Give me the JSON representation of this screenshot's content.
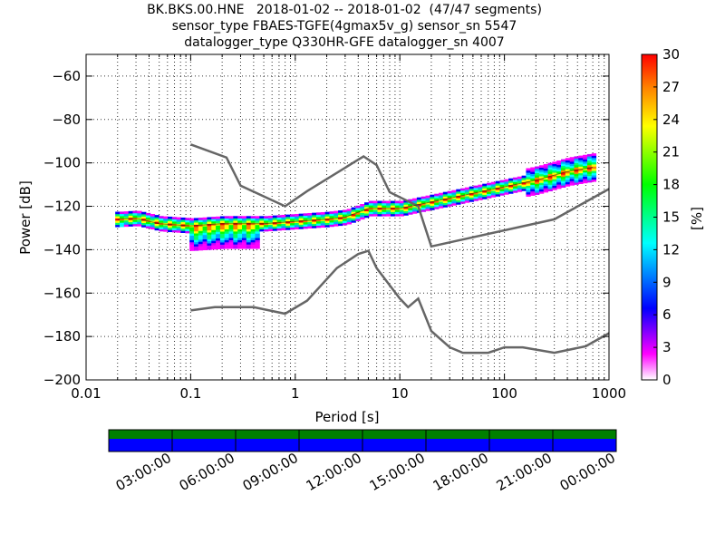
{
  "title_lines": [
    "BK.BKS.00.HNE   2018-01-02 -- 2018-01-02  (47/47 segments)",
    "sensor_type FBAES-TGFE(4gmax5v_g) sensor_sn 5547",
    "datalogger_type Q330HR-GFE datalogger_sn 4007"
  ],
  "chart_data": {
    "type": "heatmap",
    "xlabel": "Period [s]",
    "ylabel": "Power [dB]",
    "xscale": "log",
    "xlim": [
      0.01,
      1000
    ],
    "ylim": [
      -200,
      -50
    ],
    "x_ticks": [
      {
        "value": 0.01,
        "label": "0.01"
      },
      {
        "value": 0.1,
        "label": "0.1"
      },
      {
        "value": 1,
        "label": "1"
      },
      {
        "value": 10,
        "label": "10"
      },
      {
        "value": 100,
        "label": "100"
      },
      {
        "value": 1000,
        "label": "1000"
      }
    ],
    "y_ticks": [
      {
        "value": -60,
        "label": "−60"
      },
      {
        "value": -80,
        "label": "−80"
      },
      {
        "value": -100,
        "label": "−100"
      },
      {
        "value": -120,
        "label": "−120"
      },
      {
        "value": -140,
        "label": "−140"
      },
      {
        "value": -160,
        "label": "−160"
      },
      {
        "value": -180,
        "label": "−180"
      },
      {
        "value": -200,
        "label": "−200"
      }
    ],
    "grid": true,
    "series": [
      {
        "values": [
          [
            0.1,
            -91.5
          ],
          [
            0.22,
            -97.5
          ],
          [
            0.3,
            -110.5
          ],
          [
            0.8,
            -120
          ],
          [
            1.3,
            -113
          ],
          [
            4,
            -98.5
          ],
          [
            4.5,
            -97
          ],
          [
            6,
            -101
          ],
          [
            8,
            -113.5
          ],
          [
            15,
            -120
          ],
          [
            20,
            -138.5
          ],
          [
            300,
            -126
          ],
          [
            1000,
            -112
          ]
        ]
      },
      {
        "values": [
          [
            0.1,
            -168
          ],
          [
            0.17,
            -166.5
          ],
          [
            0.4,
            -166.5
          ],
          [
            0.8,
            -169.5
          ],
          [
            1.3,
            -163.5
          ],
          [
            2.5,
            -148.5
          ],
          [
            4,
            -142
          ],
          [
            5,
            -140.5
          ],
          [
            6,
            -148.5
          ],
          [
            10,
            -162.5
          ],
          [
            12,
            -166.5
          ],
          [
            15,
            -162.5
          ],
          [
            20,
            -177.5
          ],
          [
            30,
            -185
          ],
          [
            40,
            -187.5
          ],
          [
            70,
            -187.5
          ],
          [
            100,
            -185
          ],
          [
            150,
            -185
          ],
          [
            300,
            -187.5
          ],
          [
            600,
            -184.5
          ],
          [
            1000,
            -178.5
          ]
        ]
      },
      {
        "values": [
          [
            0.02,
            -126
          ],
          [
            0.03,
            -125.5
          ],
          [
            0.05,
            -128
          ],
          [
            0.1,
            -129
          ],
          [
            0.2,
            -128
          ],
          [
            0.5,
            -128
          ],
          [
            1,
            -127
          ],
          [
            2,
            -126
          ],
          [
            3,
            -125
          ],
          [
            5,
            -121
          ],
          [
            10,
            -121
          ],
          [
            20,
            -118
          ],
          [
            50,
            -114
          ],
          [
            100,
            -111
          ],
          [
            200,
            -108
          ],
          [
            400,
            -104
          ],
          [
            700,
            -102
          ]
        ]
      }
    ],
    "colorbar": {
      "label": "[%]",
      "range": [
        0,
        30
      ],
      "ticks": [
        0,
        3,
        6,
        9,
        12,
        15,
        18,
        21,
        24,
        27,
        30
      ],
      "colors": [
        "#ffffff",
        "#ff00ff",
        "#0000ff",
        "#00ffff",
        "#00ff00",
        "#ffff00",
        "#ff8000",
        "#ff0000"
      ]
    },
    "time_axis": {
      "labels": [
        "03:00:00",
        "06:00:00",
        "09:00:00",
        "12:00:00",
        "15:00:00",
        "18:00:00",
        "21:00:00",
        "00:00:00"
      ],
      "coverage_colors": {
        "top": "#008000",
        "bottom": "#0000ff"
      }
    }
  }
}
